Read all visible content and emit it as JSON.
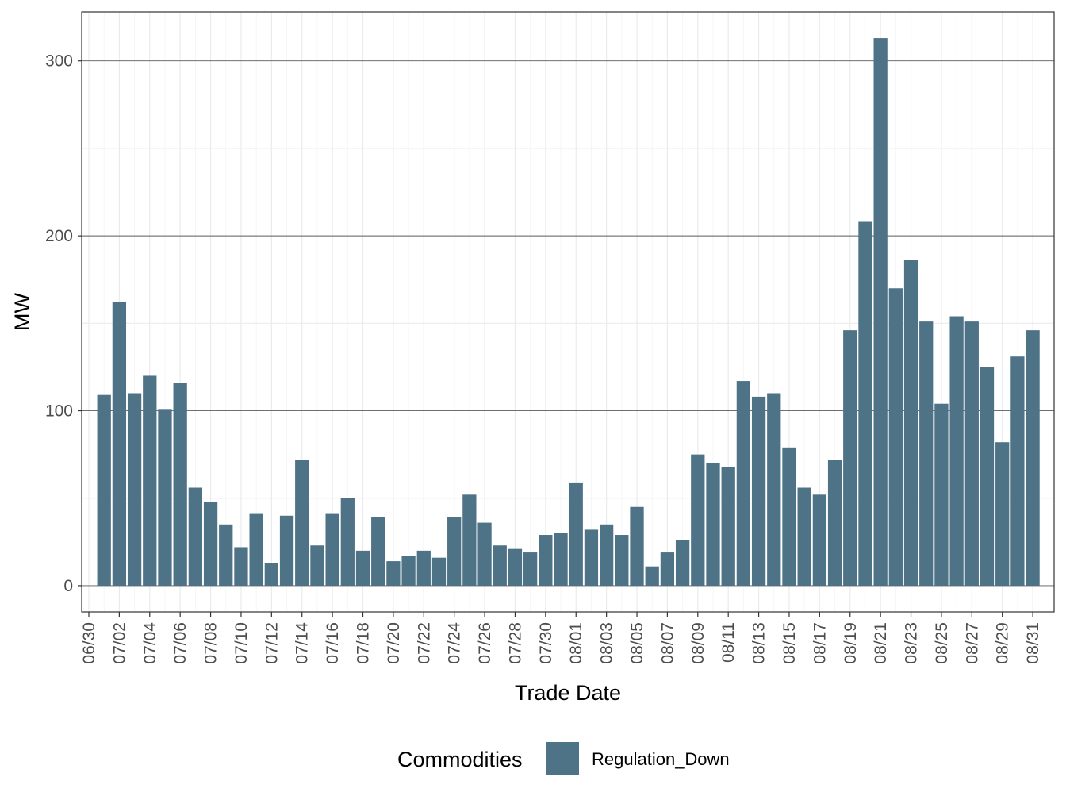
{
  "chart_data": {
    "type": "bar",
    "xlabel": "Trade Date",
    "ylabel": "MW",
    "ylim": [
      -15,
      328
    ],
    "y_ticks": [
      0,
      100,
      200,
      300
    ],
    "grid": true,
    "theme": "bw",
    "bar_color": "#4e7387",
    "legend": {
      "position": "bottom",
      "title": "Commodities",
      "entries": [
        {
          "label": "Regulation_Down",
          "color": "#4e7387"
        }
      ]
    },
    "x_tick_labels": [
      "06/30",
      "07/02",
      "07/04",
      "07/06",
      "07/08",
      "07/10",
      "07/12",
      "07/14",
      "07/16",
      "07/18",
      "07/20",
      "07/22",
      "07/24",
      "07/26",
      "07/28",
      "07/30",
      "08/01",
      "08/03",
      "08/05",
      "08/07",
      "08/09",
      "08/11",
      "08/13",
      "08/15",
      "08/17",
      "08/19",
      "08/21",
      "08/23",
      "08/25",
      "08/27",
      "08/29",
      "08/31"
    ],
    "categories": [
      "07/01",
      "07/02",
      "07/03",
      "07/04",
      "07/05",
      "07/06",
      "07/07",
      "07/08",
      "07/09",
      "07/10",
      "07/11",
      "07/12",
      "07/13",
      "07/14",
      "07/15",
      "07/16",
      "07/17",
      "07/18",
      "07/19",
      "07/20",
      "07/21",
      "07/22",
      "07/23",
      "07/24",
      "07/25",
      "07/26",
      "07/27",
      "07/28",
      "07/29",
      "07/30",
      "07/31",
      "08/01",
      "08/02",
      "08/03",
      "08/04",
      "08/05",
      "08/06",
      "08/07",
      "08/08",
      "08/09",
      "08/10",
      "08/11",
      "08/12",
      "08/13",
      "08/14",
      "08/15",
      "08/16",
      "08/17",
      "08/18",
      "08/19",
      "08/20",
      "08/21",
      "08/22",
      "08/23",
      "08/24",
      "08/25",
      "08/26",
      "08/27",
      "08/28",
      "08/29",
      "08/30",
      "08/31"
    ],
    "series": [
      {
        "name": "Regulation_Down",
        "values": [
          109,
          162,
          110,
          120,
          101,
          116,
          56,
          48,
          35,
          22,
          41,
          13,
          40,
          72,
          23,
          41,
          50,
          20,
          39,
          14,
          17,
          20,
          16,
          39,
          52,
          36,
          23,
          21,
          19,
          29,
          30,
          59,
          32,
          35,
          29,
          45,
          11,
          19,
          26,
          75,
          70,
          68,
          117,
          108,
          110,
          79,
          56,
          52,
          72,
          146,
          208,
          313,
          170,
          186,
          151,
          104,
          154,
          151,
          125,
          82,
          131,
          146
        ]
      }
    ]
  }
}
